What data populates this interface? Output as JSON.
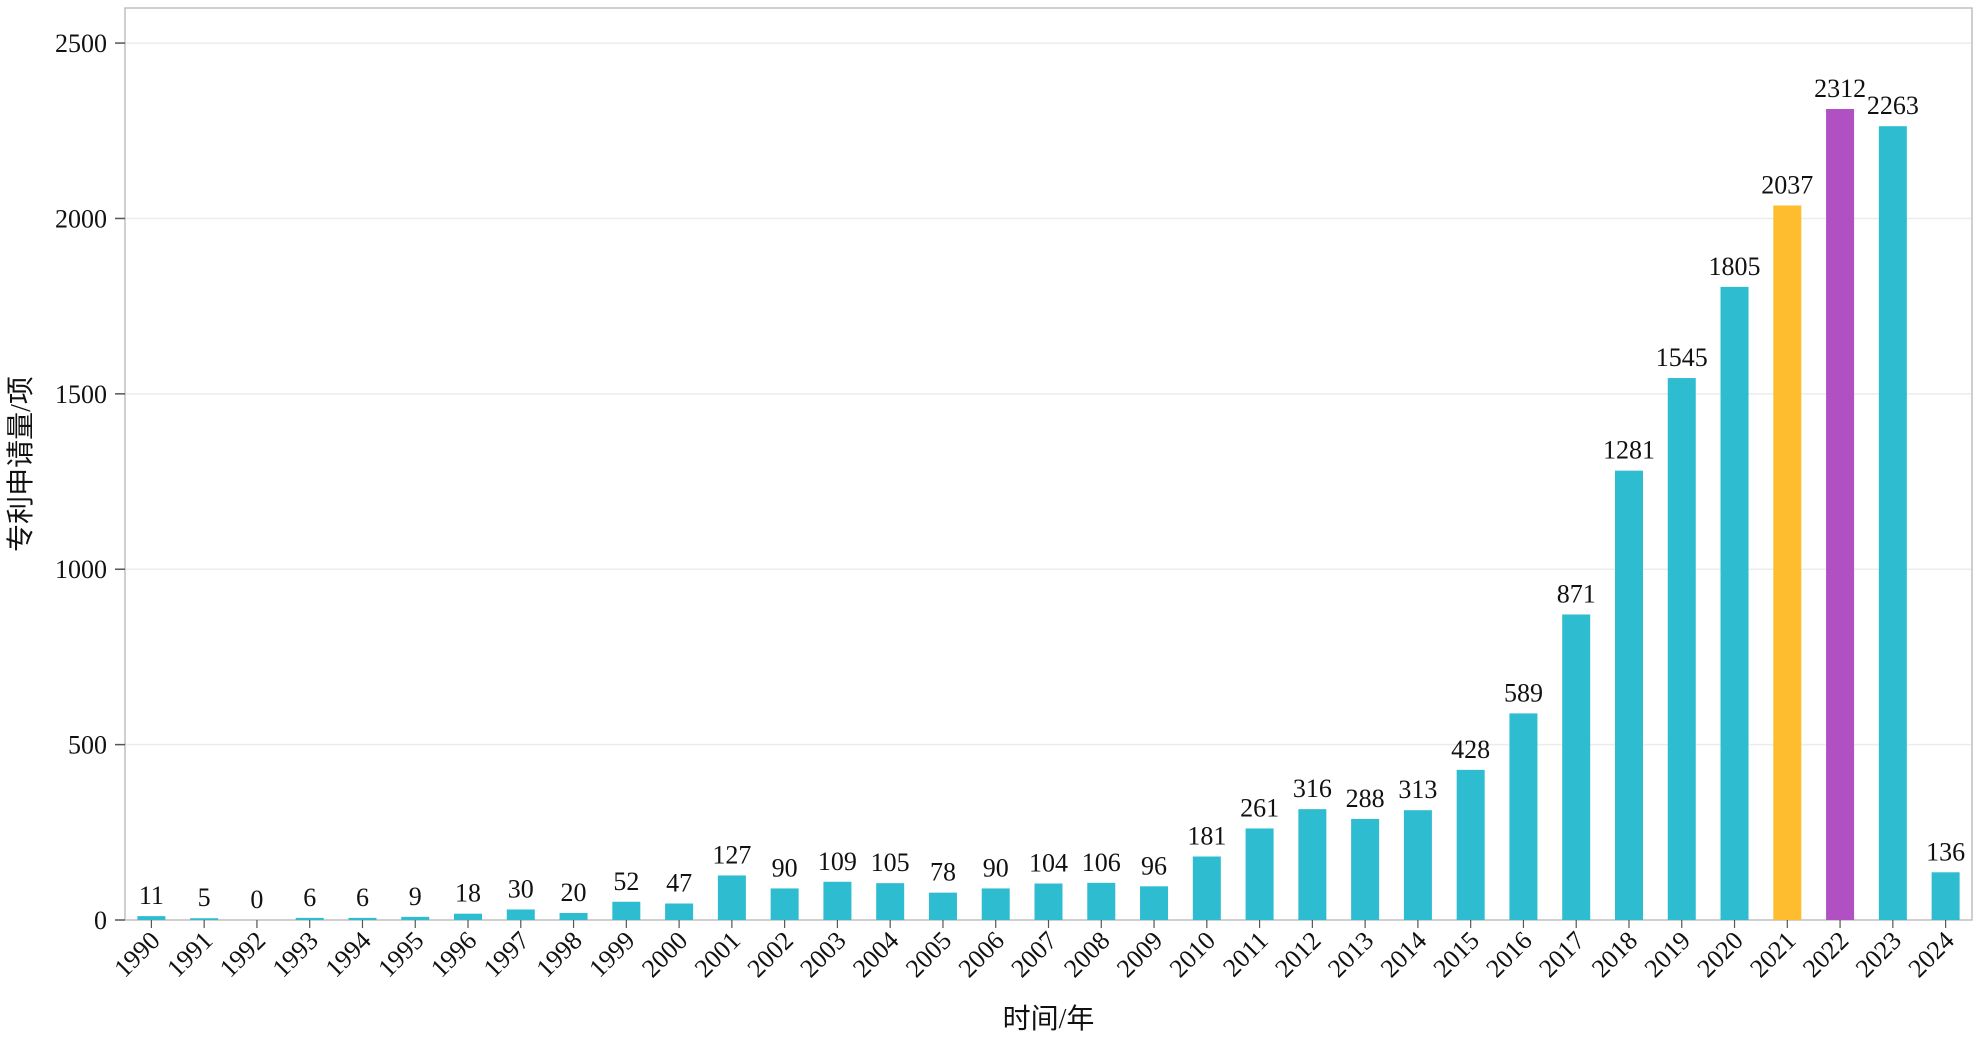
{
  "chart_data": {
    "type": "bar",
    "xlabel": "时间/年",
    "ylabel": "专利申请量/项",
    "ylim": [
      0,
      2600
    ],
    "yticks": [
      0,
      500,
      1000,
      1500,
      2000,
      2500
    ],
    "grid": "horizontal",
    "categories": [
      "1990",
      "1991",
      "1992",
      "1993",
      "1994",
      "1995",
      "1996",
      "1997",
      "1998",
      "1999",
      "2000",
      "2001",
      "2002",
      "2003",
      "2004",
      "2005",
      "2006",
      "2007",
      "2008",
      "2009",
      "2010",
      "2011",
      "2012",
      "2013",
      "2014",
      "2015",
      "2016",
      "2017",
      "2018",
      "2019",
      "2020",
      "2021",
      "2022",
      "2023",
      "2024"
    ],
    "values": [
      11,
      5,
      0,
      6,
      6,
      9,
      18,
      30,
      20,
      52,
      47,
      127,
      90,
      109,
      105,
      78,
      90,
      104,
      106,
      96,
      181,
      261,
      316,
      288,
      313,
      428,
      589,
      871,
      1281,
      1545,
      1805,
      2037,
      2312,
      2263,
      136
    ],
    "colors": {
      "default": "#2dbcd0",
      "highlights": {
        "2021": "#fdbd2e",
        "2022": "#b050c2"
      },
      "grid": "#ececec",
      "frame": "#bfbfbf"
    }
  }
}
